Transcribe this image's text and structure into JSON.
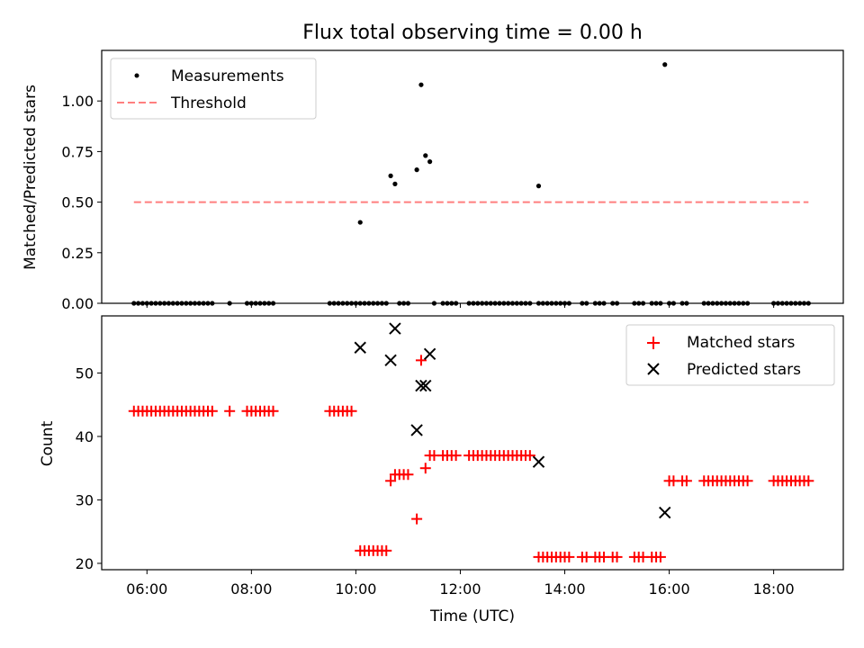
{
  "chart_data": [
    {
      "type": "scatter",
      "title": "Flux total observing time = 0.00 h",
      "xlabel": "",
      "ylabel": "Matched/Predicted stars",
      "xlim": [
        "05:08",
        "19:20"
      ],
      "ylim": [
        0,
        1.25
      ],
      "yticks": [
        0.0,
        0.25,
        0.5,
        0.75,
        1.0
      ],
      "ytick_labels": [
        "0.00",
        "0.25",
        "0.50",
        "0.75",
        "1.00"
      ],
      "xticks": [
        "06:00",
        "08:00",
        "10:00",
        "12:00",
        "14:00",
        "16:00",
        "18:00"
      ],
      "grid": false,
      "legend": "upper-left",
      "series": [
        {
          "name": "Measurements",
          "kind": "points",
          "color": "#000000",
          "x": [
            "10:05",
            "10:40",
            "10:45",
            "11:10",
            "11:15",
            "11:20",
            "11:25",
            "13:30",
            "15:55",
            "05:45",
            "05:50",
            "05:55",
            "06:00",
            "06:05",
            "06:10",
            "06:15",
            "06:20",
            "06:25",
            "06:30",
            "06:35",
            "06:40",
            "06:45",
            "06:50",
            "06:55",
            "07:00",
            "07:05",
            "07:10",
            "07:15",
            "07:35",
            "07:55",
            "08:00",
            "08:05",
            "08:10",
            "08:15",
            "08:20",
            "08:25",
            "09:30",
            "09:35",
            "09:40",
            "09:45",
            "09:50",
            "09:55",
            "10:00",
            "10:05",
            "10:10",
            "10:15",
            "10:20",
            "10:25",
            "10:30",
            "10:35",
            "10:50",
            "10:55",
            "11:00",
            "11:30",
            "11:40",
            "11:45",
            "11:50",
            "11:55",
            "12:10",
            "12:15",
            "12:20",
            "12:25",
            "12:30",
            "12:35",
            "12:40",
            "12:45",
            "12:50",
            "12:55",
            "13:00",
            "13:05",
            "13:10",
            "13:15",
            "13:20",
            "13:30",
            "13:35",
            "13:40",
            "13:45",
            "13:50",
            "13:55",
            "14:00",
            "14:05",
            "14:20",
            "14:25",
            "14:35",
            "14:40",
            "14:45",
            "14:55",
            "15:00",
            "15:20",
            "15:25",
            "15:30",
            "15:40",
            "15:45",
            "15:50",
            "16:00",
            "16:05",
            "16:15",
            "16:20",
            "16:40",
            "16:45",
            "16:50",
            "16:55",
            "17:00",
            "17:05",
            "17:10",
            "17:15",
            "17:20",
            "17:25",
            "17:30",
            "18:00",
            "18:05",
            "18:10",
            "18:15",
            "18:20",
            "18:25",
            "18:30",
            "18:35",
            "18:40"
          ],
          "y": [
            0.4,
            0.63,
            0.59,
            0.66,
            1.08,
            0.73,
            0.7,
            0.58,
            1.18,
            0,
            0,
            0,
            0,
            0,
            0,
            0,
            0,
            0,
            0,
            0,
            0,
            0,
            0,
            0,
            0,
            0,
            0,
            0,
            0,
            0,
            0,
            0,
            0,
            0,
            0,
            0,
            0,
            0,
            0,
            0,
            0,
            0,
            0,
            0,
            0,
            0,
            0,
            0,
            0,
            0,
            0,
            0,
            0,
            0,
            0,
            0,
            0,
            0,
            0,
            0,
            0,
            0,
            0,
            0,
            0,
            0,
            0,
            0,
            0,
            0,
            0,
            0,
            0,
            0,
            0,
            0,
            0,
            0,
            0,
            0,
            0,
            0,
            0,
            0,
            0,
            0,
            0,
            0,
            0,
            0,
            0,
            0,
            0,
            0,
            0,
            0,
            0,
            0,
            0,
            0,
            0,
            0,
            0,
            0,
            0,
            0,
            0,
            0,
            0,
            0,
            0,
            0,
            0,
            0,
            0,
            0,
            0,
            0
          ]
        },
        {
          "name": "Threshold",
          "kind": "dashed-line",
          "color": "#ff7f7f",
          "x": [
            "05:45",
            "18:40"
          ],
          "y": [
            0.5,
            0.5
          ]
        }
      ]
    },
    {
      "type": "scatter",
      "title": "",
      "xlabel": "Time (UTC)",
      "ylabel": "Count",
      "xlim": [
        "05:08",
        "19:20"
      ],
      "ylim": [
        19,
        59
      ],
      "yticks": [
        20,
        30,
        40,
        50
      ],
      "ytick_labels": [
        "20",
        "30",
        "40",
        "50"
      ],
      "xticks": [
        "06:00",
        "08:00",
        "10:00",
        "12:00",
        "14:00",
        "16:00",
        "18:00"
      ],
      "xtick_labels": [
        "06:00",
        "08:00",
        "10:00",
        "12:00",
        "14:00",
        "16:00",
        "18:00"
      ],
      "grid": false,
      "legend": "upper-right",
      "series": [
        {
          "name": "Matched stars",
          "kind": "plus",
          "color": "#ff0000",
          "x": [
            "05:45",
            "05:50",
            "05:55",
            "06:00",
            "06:05",
            "06:10",
            "06:15",
            "06:20",
            "06:25",
            "06:30",
            "06:35",
            "06:40",
            "06:45",
            "06:50",
            "06:55",
            "07:00",
            "07:05",
            "07:10",
            "07:15",
            "07:35",
            "07:55",
            "08:00",
            "08:05",
            "08:10",
            "08:15",
            "08:20",
            "08:25",
            "09:30",
            "09:35",
            "09:40",
            "09:45",
            "09:50",
            "09:55",
            "10:05",
            "10:10",
            "10:15",
            "10:20",
            "10:25",
            "10:30",
            "10:35",
            "10:40",
            "10:45",
            "10:50",
            "10:55",
            "11:00",
            "11:10",
            "11:15",
            "11:20",
            "11:25",
            "11:30",
            "11:40",
            "11:45",
            "11:50",
            "11:55",
            "12:10",
            "12:15",
            "12:20",
            "12:25",
            "12:30",
            "12:35",
            "12:40",
            "12:45",
            "12:50",
            "12:55",
            "13:00",
            "13:05",
            "13:10",
            "13:15",
            "13:20",
            "13:30",
            "13:35",
            "13:40",
            "13:45",
            "13:50",
            "13:55",
            "14:00",
            "14:05",
            "14:20",
            "14:25",
            "14:35",
            "14:40",
            "14:45",
            "14:55",
            "15:00",
            "15:20",
            "15:25",
            "15:30",
            "15:40",
            "15:45",
            "15:50",
            "16:00",
            "16:05",
            "16:15",
            "16:20",
            "16:40",
            "16:45",
            "16:50",
            "16:55",
            "17:00",
            "17:05",
            "17:10",
            "17:15",
            "17:20",
            "17:25",
            "17:30",
            "18:00",
            "18:05",
            "18:10",
            "18:15",
            "18:20",
            "18:25",
            "18:30",
            "18:35",
            "18:40"
          ],
          "y": [
            44,
            44,
            44,
            44,
            44,
            44,
            44,
            44,
            44,
            44,
            44,
            44,
            44,
            44,
            44,
            44,
            44,
            44,
            44,
            44,
            44,
            44,
            44,
            44,
            44,
            44,
            44,
            44,
            44,
            44,
            44,
            44,
            44,
            22,
            22,
            22,
            22,
            22,
            22,
            22,
            33,
            34,
            34,
            34,
            34,
            27,
            52,
            35,
            37,
            37,
            37,
            37,
            37,
            37,
            37,
            37,
            37,
            37,
            37,
            37,
            37,
            37,
            37,
            37,
            37,
            37,
            37,
            37,
            37,
            21,
            21,
            21,
            21,
            21,
            21,
            21,
            21,
            21,
            21,
            21,
            21,
            21,
            21,
            21,
            21,
            21,
            21,
            21,
            21,
            21,
            33,
            33,
            33,
            33,
            33,
            33,
            33,
            33,
            33,
            33,
            33,
            33,
            33,
            33,
            33,
            33,
            33,
            33,
            33,
            33,
            33,
            33,
            33,
            33
          ]
        },
        {
          "name": "Predicted stars",
          "kind": "x",
          "color": "#000000",
          "x": [
            "10:05",
            "10:40",
            "10:45",
            "11:10",
            "11:15",
            "11:20",
            "11:25",
            "13:30",
            "15:55"
          ],
          "y": [
            54,
            52,
            57,
            41,
            48,
            48,
            53,
            36,
            28
          ]
        }
      ]
    }
  ]
}
